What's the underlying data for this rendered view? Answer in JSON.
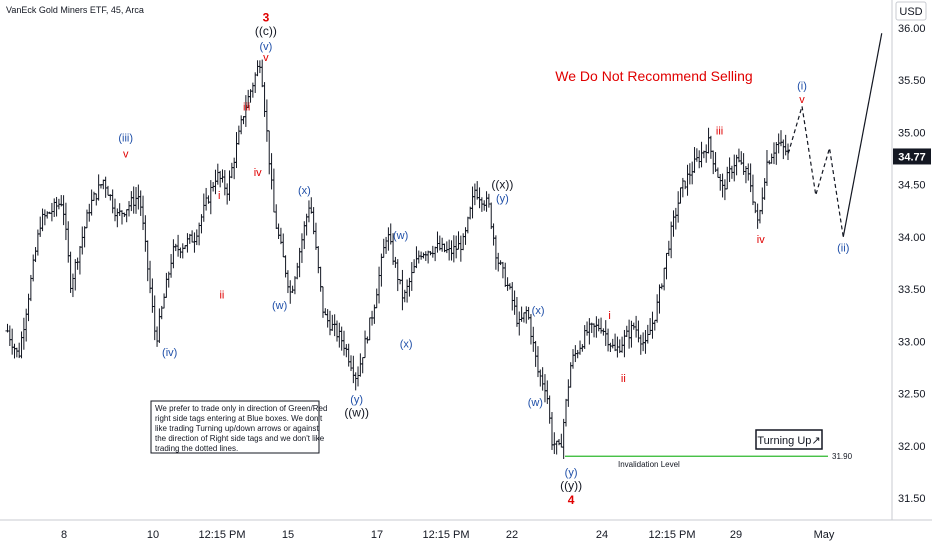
{
  "header": {
    "ticker_title": "VanEck Gold Miners ETF, 45, Arca",
    "currency": "USD"
  },
  "headline": "We Do Not Recommend Selling",
  "note_lines": [
    "We prefer to trade only in direction of Green/Red",
    "right side tags entering at Blue boxes. We don't",
    "like trading Turning up/down arrows or against",
    "the direction of Right side tags and we don't like",
    "trading the dotted lines."
  ],
  "turning_up_label": "Turning Up↗",
  "last_price": "34.77",
  "colors": {
    "red": "#e00000",
    "blue": "#1f4fa8",
    "black": "#131722",
    "green": "#2eb82e",
    "price_bar": "#131722",
    "axis": "#9598a1"
  },
  "chart_data": {
    "type": "bar",
    "title": "",
    "x_ticks": [
      "8",
      "10",
      "12:15 PM",
      "15",
      "17",
      "12:15 PM",
      "22",
      "24",
      "12:15 PM",
      "29",
      "May"
    ],
    "y_ticks": [
      "36.00",
      "35.50",
      "35.00",
      "34.50",
      "34.00",
      "33.50",
      "33.00",
      "32.50",
      "32.00",
      "31.50"
    ],
    "ylim": [
      31.5,
      36.0
    ],
    "invalidation": {
      "label": "Invalidation Level",
      "value": 31.9,
      "value_label": "31.90"
    },
    "last_price": 34.77,
    "path_points": [
      [
        0.2,
        33.1
      ],
      [
        0.6,
        32.85
      ],
      [
        1.4,
        34.15
      ],
      [
        2.2,
        34.35
      ],
      [
        2.5,
        33.55
      ],
      [
        3.2,
        34.3
      ],
      [
        3.7,
        34.55
      ],
      [
        4.2,
        34.2
      ],
      [
        5.0,
        34.4
      ],
      [
        5.6,
        33.0
      ],
      [
        6.2,
        33.85
      ],
      [
        7.0,
        34.0
      ],
      [
        7.8,
        34.6
      ],
      [
        8.2,
        34.45
      ],
      [
        8.8,
        35.2
      ],
      [
        9.4,
        35.7
      ],
      [
        9.9,
        34.2
      ],
      [
        10.3,
        33.7
      ],
      [
        10.5,
        33.45
      ],
      [
        11.2,
        34.35
      ],
      [
        11.7,
        33.25
      ],
      [
        12.4,
        33.0
      ],
      [
        12.9,
        32.65
      ],
      [
        13.5,
        33.3
      ],
      [
        14.0,
        34.05
      ],
      [
        14.6,
        33.4
      ],
      [
        15.2,
        33.85
      ],
      [
        15.8,
        33.9
      ],
      [
        16.3,
        33.85
      ],
      [
        16.8,
        33.95
      ],
      [
        17.2,
        34.45
      ],
      [
        17.7,
        34.3
      ],
      [
        18.0,
        33.8
      ],
      [
        18.5,
        33.45
      ],
      [
        18.8,
        33.15
      ],
      [
        19.1,
        33.3
      ],
      [
        19.5,
        32.7
      ],
      [
        19.8,
        32.55
      ],
      [
        20.0,
        32.05
      ],
      [
        20.3,
        31.95
      ],
      [
        20.7,
        32.8
      ],
      [
        21.3,
        33.1
      ],
      [
        21.8,
        33.15
      ],
      [
        22.3,
        32.9
      ],
      [
        23.0,
        33.15
      ],
      [
        23.4,
        32.95
      ],
      [
        23.8,
        33.3
      ],
      [
        24.3,
        34.0
      ],
      [
        24.7,
        34.45
      ],
      [
        25.2,
        34.7
      ],
      [
        25.7,
        34.9
      ],
      [
        26.2,
        34.45
      ],
      [
        26.7,
        34.75
      ],
      [
        27.2,
        34.55
      ],
      [
        27.5,
        34.1
      ],
      [
        27.8,
        34.7
      ],
      [
        28.2,
        34.9
      ],
      [
        28.6,
        34.8
      ]
    ],
    "projection_dashed": [
      [
        28.6,
        34.8
      ],
      [
        29.1,
        35.25
      ],
      [
        29.6,
        34.4
      ],
      [
        30.1,
        34.85
      ],
      [
        30.6,
        34.0
      ]
    ],
    "projection_solid": [
      [
        30.6,
        34.0
      ],
      [
        32.0,
        35.95
      ]
    ],
    "wave_labels": [
      {
        "text": "(iii)",
        "x": 4.5,
        "y": 34.95,
        "color": "blue"
      },
      {
        "text": "v",
        "x": 4.5,
        "y": 34.8,
        "color": "red"
      },
      {
        "text": "(iv)",
        "x": 6.1,
        "y": 32.9,
        "color": "blue"
      },
      {
        "text": "i",
        "x": 7.9,
        "y": 34.4,
        "color": "red"
      },
      {
        "text": "ii",
        "x": 8.0,
        "y": 33.45,
        "color": "red"
      },
      {
        "text": "iii",
        "x": 8.9,
        "y": 35.25,
        "color": "red"
      },
      {
        "text": "iv",
        "x": 9.3,
        "y": 34.62,
        "color": "red"
      },
      {
        "text": "3",
        "x": 9.6,
        "y": 36.1,
        "color": "red"
      },
      {
        "text": "((c))",
        "x": 9.6,
        "y": 35.97,
        "color": "black"
      },
      {
        "text": "(v)",
        "x": 9.6,
        "y": 35.83,
        "color": "blue"
      },
      {
        "text": "v",
        "x": 9.6,
        "y": 35.72,
        "color": "red"
      },
      {
        "text": "(x)",
        "x": 11.0,
        "y": 34.45,
        "color": "blue"
      },
      {
        "text": "(w)",
        "x": 10.1,
        "y": 33.35,
        "color": "blue"
      },
      {
        "text": "(w)",
        "x": 14.5,
        "y": 34.02,
        "color": "blue"
      },
      {
        "text": "(x)",
        "x": 14.7,
        "y": 32.98,
        "color": "blue"
      },
      {
        "text": "(y)",
        "x": 12.9,
        "y": 32.45,
        "color": "blue"
      },
      {
        "text": "((w))",
        "x": 12.9,
        "y": 32.32,
        "color": "black"
      },
      {
        "text": "((x))",
        "x": 18.2,
        "y": 34.5,
        "color": "black"
      },
      {
        "text": "(y)",
        "x": 18.2,
        "y": 34.37,
        "color": "blue"
      },
      {
        "text": "(x)",
        "x": 19.5,
        "y": 33.3,
        "color": "blue"
      },
      {
        "text": "(w)",
        "x": 19.4,
        "y": 32.42,
        "color": "blue"
      },
      {
        "text": "(y)",
        "x": 20.7,
        "y": 31.75,
        "color": "blue"
      },
      {
        "text": "((y))",
        "x": 20.7,
        "y": 31.62,
        "color": "black"
      },
      {
        "text": "4",
        "x": 20.7,
        "y": 31.48,
        "color": "red"
      },
      {
        "text": "i",
        "x": 22.1,
        "y": 33.25,
        "color": "red"
      },
      {
        "text": "ii",
        "x": 22.6,
        "y": 32.65,
        "color": "red"
      },
      {
        "text": "iii",
        "x": 26.1,
        "y": 35.02,
        "color": "red"
      },
      {
        "text": "iv",
        "x": 27.6,
        "y": 33.98,
        "color": "red"
      },
      {
        "text": "(i)",
        "x": 29.1,
        "y": 35.45,
        "color": "blue"
      },
      {
        "text": "v",
        "x": 29.1,
        "y": 35.32,
        "color": "red"
      },
      {
        "text": "(ii)",
        "x": 30.6,
        "y": 33.9,
        "color": "blue"
      }
    ]
  }
}
